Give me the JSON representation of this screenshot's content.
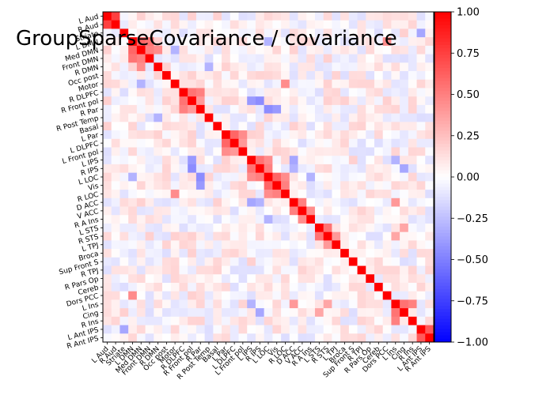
{
  "chart_data": {
    "type": "heatmap",
    "title": "GroupSparseCovariance / covariance",
    "labels": [
      "L Aud",
      "R Aud",
      "Striate",
      "L DMN",
      "Med DMN",
      "Front DMN",
      "R DMN",
      "Occ post",
      "Motor",
      "R DLPFC",
      "R Front pol",
      "R Par",
      "R Post Temp",
      "Basal",
      "L Par",
      "L DLPFC",
      "L Front pol",
      "L IPS",
      "R IPS",
      "L LOC",
      "Vis",
      "R LOC",
      "D ACC",
      "V ACC",
      "R A Ins",
      "L STS",
      "R STS",
      "L TPJ",
      "Broca",
      "Sup Front S",
      "R TPJ",
      "R Pars Op",
      "Cereb",
      "Dors PCC",
      "L Ins",
      "Cing",
      "R Ins",
      "L Ant IPS",
      "R Ant IPS"
    ],
    "value_range": [
      -1.0,
      1.0
    ],
    "diagonal_value": 1.0,
    "colormap": "bwr",
    "colors": {
      "low": "#0000ff",
      "mid": "#ffffff",
      "high": "#ff0000"
    },
    "colorbar": {
      "ticks": [
        "1.00",
        "0.75",
        "0.50",
        "0.25",
        "0.00",
        "−0.25",
        "−0.50",
        "−0.75",
        "−1.00"
      ]
    },
    "strong_pairs": [
      {
        "a": "L Aud",
        "b": "R Aud",
        "value": 0.75
      },
      {
        "a": "L DMN",
        "b": "Med DMN",
        "value": 0.6
      },
      {
        "a": "L DMN",
        "b": "Front DMN",
        "value": 0.55
      },
      {
        "a": "Med DMN",
        "b": "Front DMN",
        "value": 0.5
      },
      {
        "a": "Med DMN",
        "b": "R DMN",
        "value": 0.45
      },
      {
        "a": "R DLPFC",
        "b": "R Front pol",
        "value": 0.55
      },
      {
        "a": "R DLPFC",
        "b": "R Par",
        "value": 0.5
      },
      {
        "a": "R Front pol",
        "b": "R Par",
        "value": 0.4
      },
      {
        "a": "L Par",
        "b": "L DLPFC",
        "value": 0.6
      },
      {
        "a": "L Par",
        "b": "L Front pol",
        "value": 0.45
      },
      {
        "a": "L DLPFC",
        "b": "L Front pol",
        "value": 0.4
      },
      {
        "a": "L IPS",
        "b": "R IPS",
        "value": 0.55
      },
      {
        "a": "L IPS",
        "b": "L LOC",
        "value": 0.45
      },
      {
        "a": "R IPS",
        "b": "L LOC",
        "value": 0.5
      },
      {
        "a": "L LOC",
        "b": "Vis",
        "value": 0.6
      },
      {
        "a": "Vis",
        "b": "R LOC",
        "value": 0.5
      },
      {
        "a": "L LOC",
        "b": "R LOC",
        "value": 0.45
      },
      {
        "a": "D ACC",
        "b": "V ACC",
        "value": 0.5
      },
      {
        "a": "V ACC",
        "b": "R A Ins",
        "value": 0.45
      },
      {
        "a": "L STS",
        "b": "R STS",
        "value": 0.55
      },
      {
        "a": "R STS",
        "b": "L TPJ",
        "value": 0.4
      },
      {
        "a": "L Ins",
        "b": "Cing",
        "value": 0.55
      },
      {
        "a": "L Ins",
        "b": "R Ins",
        "value": 0.5
      },
      {
        "a": "L Ant IPS",
        "b": "R Ant IPS",
        "value": 0.65
      },
      {
        "a": "R IPS",
        "b": "R Front pol",
        "value": -0.45
      },
      {
        "a": "L IPS",
        "b": "R Front pol",
        "value": -0.4
      },
      {
        "a": "R Par",
        "b": "L LOC",
        "value": -0.45
      },
      {
        "a": "R Par",
        "b": "Vis",
        "value": -0.4
      },
      {
        "a": "L DMN",
        "b": "L LOC",
        "value": -0.3
      },
      {
        "a": "D ACC",
        "b": "L IPS",
        "value": -0.35
      },
      {
        "a": "D ACC",
        "b": "R IPS",
        "value": -0.3
      },
      {
        "a": "Cing",
        "b": "R IPS",
        "value": -0.35
      },
      {
        "a": "L Ins",
        "b": "L IPS",
        "value": -0.3
      },
      {
        "a": "R A Ins",
        "b": "L LOC",
        "value": -0.3
      },
      {
        "a": "Med DMN",
        "b": "Motor",
        "value": -0.3
      },
      {
        "a": "R DMN",
        "b": "R Post Temp",
        "value": -0.3
      },
      {
        "a": "Striate",
        "b": "L Ant IPS",
        "value": -0.35
      },
      {
        "a": "Motor",
        "b": "R LOC",
        "value": 0.45
      },
      {
        "a": "Dors PCC",
        "b": "L DMN",
        "value": 0.45
      },
      {
        "a": "L Ins",
        "b": "D ACC",
        "value": 0.4
      },
      {
        "a": "Cing",
        "b": "L STS",
        "value": 0.35
      },
      {
        "a": "L Ins",
        "b": "R STS",
        "value": 0.35
      }
    ]
  }
}
